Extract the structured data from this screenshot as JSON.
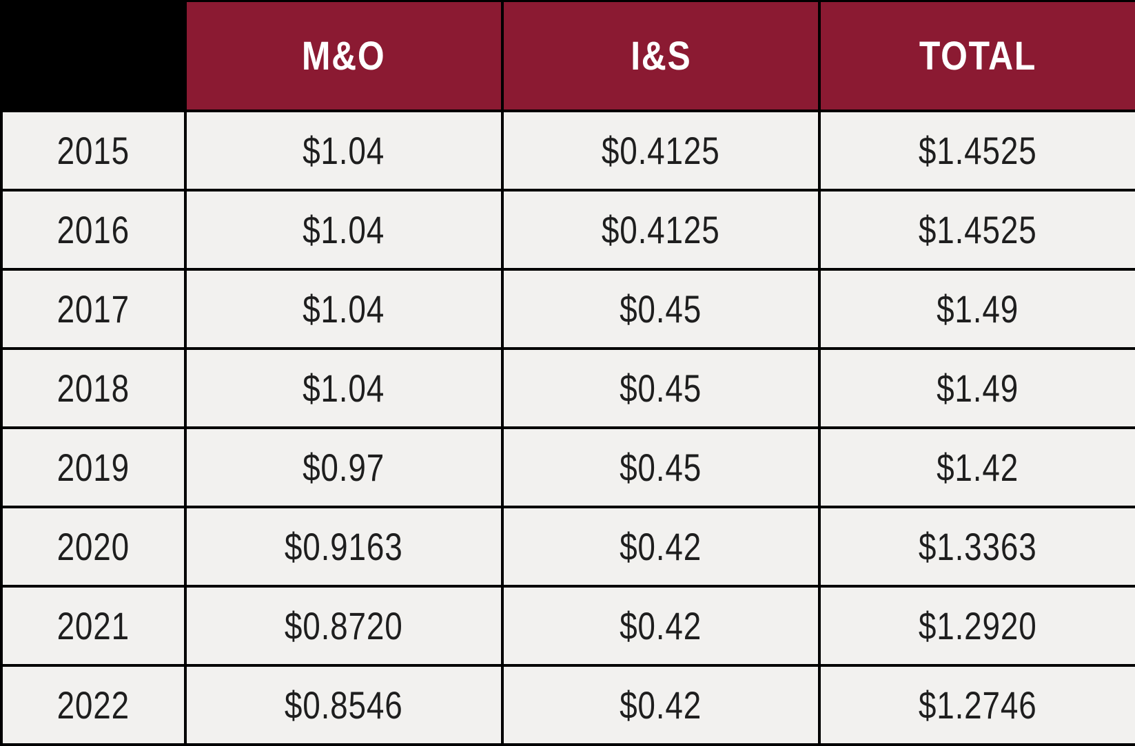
{
  "chart_data": {
    "type": "table",
    "columns": [
      "",
      "M&O",
      "I&S",
      "TOTAL"
    ],
    "rows": [
      [
        "2015",
        "$1.04",
        "$0.4125",
        "$1.4525"
      ],
      [
        "2016",
        "$1.04",
        "$0.4125",
        "$1.4525"
      ],
      [
        "2017",
        "$1.04",
        "$0.45",
        "$1.49"
      ],
      [
        "2018",
        "$1.04",
        "$0.45",
        "$1.49"
      ],
      [
        "2019",
        "$0.97",
        "$0.45",
        "$1.42"
      ],
      [
        "2020",
        "$0.9163",
        "$0.42",
        "$1.3363"
      ],
      [
        "2021",
        "$0.8720",
        "$0.42",
        "$1.2920"
      ],
      [
        "2022",
        "$0.8546",
        "$0.42",
        "$1.2746"
      ]
    ],
    "layout": {
      "header_position": "top",
      "row_label_column": "year",
      "grid": true
    }
  },
  "colors": {
    "header_bg": "#8B1A32",
    "corner_bg": "#000000",
    "cell_bg": "#F2F1EF",
    "border": "#000000",
    "header_text": "#FFFFFF",
    "cell_text": "#1E1E1E"
  }
}
